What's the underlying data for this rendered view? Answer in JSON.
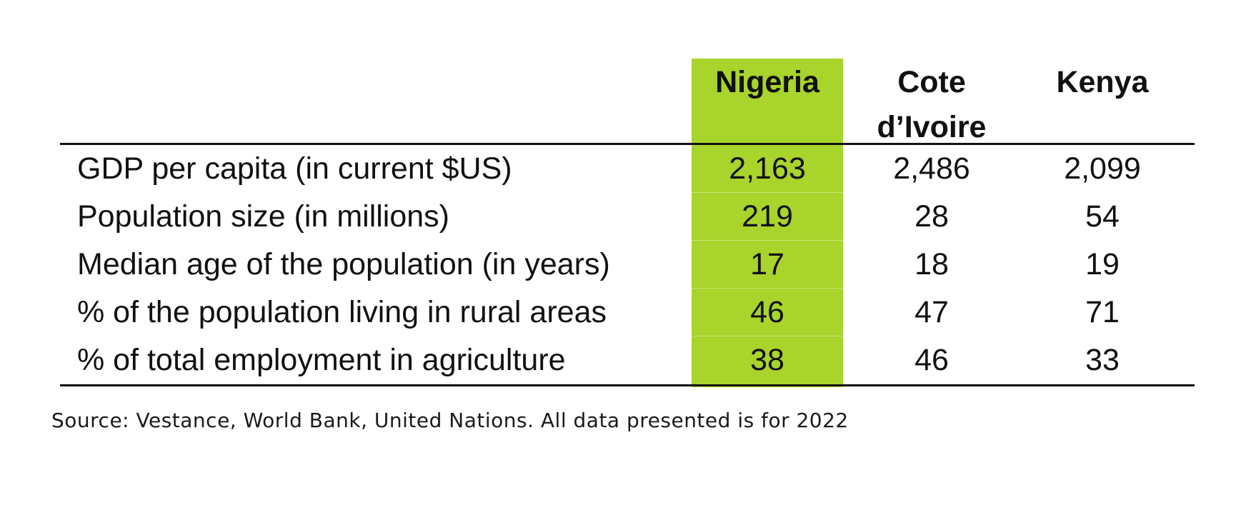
{
  "chart_data": {
    "type": "table",
    "title": "",
    "columns": [
      "Nigeria",
      "Cote d’Ivoire",
      "Kenya"
    ],
    "column_headers": {
      "nigeria": "Nigeria",
      "cote_line1": "Cote",
      "cote_line2": "d’Ivoire",
      "kenya": "Kenya"
    },
    "highlighted_column": "Nigeria",
    "highlight_color": "#a8d42c",
    "rows": [
      {
        "label": "GDP per capita (in current $US)",
        "values": [
          "2,163",
          "2,486",
          "2,099"
        ]
      },
      {
        "label": "Population size (in millions)",
        "values": [
          "219",
          "28",
          "54"
        ]
      },
      {
        "label": "Median age of the population (in years)",
        "values": [
          "17",
          "18",
          "19"
        ]
      },
      {
        "label": "% of the population living in rural areas",
        "values": [
          "46",
          "47",
          "71"
        ]
      },
      {
        "label": "% of total employment in agriculture",
        "values": [
          "38",
          "46",
          "33"
        ]
      }
    ]
  },
  "source": "Source: Vestance, World Bank, United Nations. All data presented is for 2022"
}
